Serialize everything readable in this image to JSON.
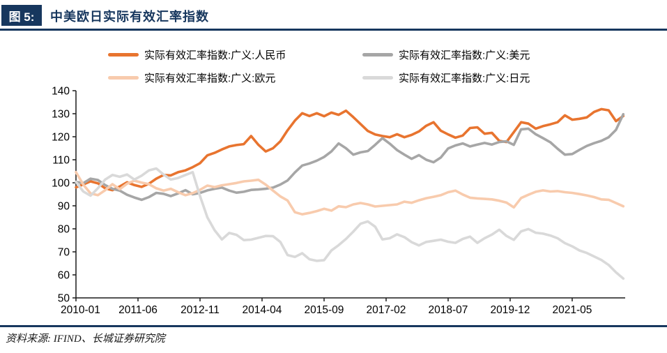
{
  "header": {
    "figure_tag": "图 5:",
    "title": "中美欧日实际有效汇率指数"
  },
  "footer": {
    "source": "资料来源: IFIND、长城证券研究院"
  },
  "theme": {
    "navy": "#17375E",
    "axis_color": "#1a1a1a",
    "cny_orange": "#E8742F",
    "usd_gray": "#A6A6A6",
    "eur_light_orange": "#F8CBAD",
    "jpy_light_gray": "#D9D9D9"
  },
  "chart_data": {
    "type": "line",
    "title": "中美欧日实际有效汇率指数",
    "xlabel": "",
    "ylabel": "",
    "ylim": [
      50,
      140
    ],
    "y_ticks": [
      50,
      60,
      70,
      80,
      90,
      100,
      110,
      120,
      130,
      140
    ],
    "grid": false,
    "legend_position": "top",
    "step_months": 2,
    "x_tick_labels": [
      "2010-01",
      "2011-06",
      "2012-11",
      "2014-04",
      "2015-09",
      "2017-02",
      "2018-07",
      "2019-12",
      "2021-05"
    ],
    "x_tick_months": [
      0,
      17,
      34,
      51,
      68,
      85,
      102,
      119,
      136
    ],
    "x": [
      "2010-01",
      "2010-03",
      "2010-05",
      "2010-07",
      "2010-09",
      "2010-11",
      "2011-01",
      "2011-03",
      "2011-05",
      "2011-07",
      "2011-09",
      "2011-11",
      "2012-01",
      "2012-03",
      "2012-05",
      "2012-07",
      "2012-09",
      "2012-11",
      "2013-01",
      "2013-03",
      "2013-05",
      "2013-07",
      "2013-09",
      "2013-11",
      "2014-01",
      "2014-03",
      "2014-05",
      "2014-07",
      "2014-09",
      "2014-11",
      "2015-01",
      "2015-03",
      "2015-05",
      "2015-07",
      "2015-09",
      "2015-11",
      "2016-01",
      "2016-03",
      "2016-05",
      "2016-07",
      "2016-09",
      "2016-11",
      "2017-01",
      "2017-03",
      "2017-05",
      "2017-07",
      "2017-09",
      "2017-11",
      "2018-01",
      "2018-03",
      "2018-05",
      "2018-07",
      "2018-09",
      "2018-11",
      "2019-01",
      "2019-03",
      "2019-05",
      "2019-07",
      "2019-09",
      "2019-11",
      "2020-01",
      "2020-03",
      "2020-05",
      "2020-07",
      "2020-09",
      "2020-11",
      "2021-01",
      "2021-03",
      "2021-05",
      "2021-07",
      "2021-09",
      "2021-11",
      "2022-01",
      "2022-03",
      "2022-05",
      "2022-07"
    ],
    "series": [
      {
        "name": "实际有效汇率指数:广义:人民币",
        "color": "#E8742F",
        "values": [
          98,
          99.3,
          100.6,
          99.8,
          97.6,
          96.8,
          98.4,
          100.2,
          99,
          98.2,
          99.6,
          101.8,
          103.4,
          103.2,
          104.6,
          105.4,
          106.8,
          108.5,
          111.9,
          113,
          114.5,
          115.8,
          116.4,
          116.8,
          120.3,
          116.5,
          113.6,
          115,
          118,
          122.8,
          127,
          130.2,
          129,
          130.2,
          128.9,
          130.5,
          129.5,
          131.3,
          128.5,
          125.5,
          122.5,
          121,
          120.3,
          119.8,
          121.1,
          119.8,
          120.8,
          122.3,
          124.8,
          126.3,
          122.6,
          121,
          119.6,
          120.5,
          123.8,
          124.1,
          121.3,
          121.7,
          118.2,
          117.7,
          122,
          126.3,
          125.7,
          123.5,
          124.6,
          125.4,
          126.3,
          129.3,
          127.4,
          127.8,
          128.4,
          130.8,
          132,
          131.5,
          126.8,
          129
        ]
      },
      {
        "name": "实际有效汇率指数:广义:美元",
        "color": "#A6A6A6",
        "values": [
          100.4,
          99.8,
          101.8,
          101.2,
          99,
          97.4,
          96.6,
          94.8,
          93.6,
          92.6,
          93.8,
          95.6,
          95.2,
          94.2,
          95.4,
          96.8,
          95,
          95.6,
          96.7,
          97.4,
          97.9,
          96.6,
          95.7,
          96.1,
          96.9,
          97.1,
          97.4,
          97.9,
          99.2,
          101,
          104.5,
          107.5,
          108.4,
          109.6,
          111.2,
          113.6,
          117.1,
          115,
          112.2,
          113.2,
          113.8,
          116.5,
          119.4,
          117,
          114.2,
          112.2,
          110.4,
          112,
          110,
          108.9,
          111,
          114.9,
          116.2,
          117.1,
          115.8,
          116.6,
          117.3,
          116.6,
          117.7,
          118,
          116.5,
          123.2,
          123.5,
          121.1,
          119.4,
          117.6,
          114.8,
          112.2,
          112.5,
          114.3,
          116,
          117.2,
          118.2,
          119.8,
          123,
          129.8
        ]
      },
      {
        "name": "实际有效汇率指数:广义:欧元",
        "color": "#F8CBAD",
        "values": [
          104.6,
          99.2,
          95.4,
          94.6,
          96.8,
          99.4,
          97.2,
          99.6,
          100.9,
          100.1,
          99.4,
          97.6,
          96.6,
          97.4,
          95.9,
          94.6,
          95.5,
          96.9,
          98.8,
          98.1,
          98.9,
          99.4,
          99.9,
          100.6,
          100.9,
          101.3,
          99.2,
          96.6,
          94.1,
          92.3,
          87.2,
          86.3,
          86.9,
          87.7,
          88.7,
          87.9,
          89.8,
          89.4,
          90.6,
          91.2,
          90.6,
          89.7,
          90,
          90.3,
          90.6,
          91.8,
          91.3,
          92.4,
          93.3,
          93.9,
          94.6,
          95.9,
          96.6,
          94.9,
          93.5,
          93.2,
          93,
          92.8,
          92.2,
          91.4,
          89.3,
          93.4,
          94.8,
          96.1,
          96.7,
          96.2,
          96.4,
          95.9,
          95.6,
          95.1,
          94.5,
          93.8,
          92.8,
          92.6,
          91.2,
          89.8
        ]
      },
      {
        "name": "实际有效汇率指数:广义:日元",
        "color": "#D9D9D9",
        "values": [
          100.4,
          96.2,
          94.4,
          97.6,
          101.4,
          103.4,
          102.6,
          103.6,
          101.4,
          103.1,
          105.4,
          106.2,
          103.6,
          101.4,
          102.1,
          103.4,
          104.6,
          94.2,
          85,
          79.4,
          75.4,
          78.2,
          77.4,
          75.1,
          75.3,
          76.1,
          76.9,
          76.8,
          74.3,
          68.6,
          67.8,
          69.4,
          66.8,
          66.1,
          66.4,
          70.6,
          72.9,
          75.6,
          78.8,
          82.2,
          83.2,
          80.9,
          75.4,
          75.9,
          77.6,
          76.4,
          74.2,
          72.8,
          74.3,
          74.8,
          75.3,
          74.4,
          73.9,
          75.6,
          76.6,
          73.9,
          75.9,
          77.5,
          79.6,
          76.9,
          75.2,
          78.9,
          79.9,
          78.3,
          77.9,
          77.1,
          75.9,
          73.8,
          72.4,
          70.6,
          69.5,
          68,
          66.5,
          64.3,
          61.1,
          58.4
        ]
      }
    ]
  }
}
